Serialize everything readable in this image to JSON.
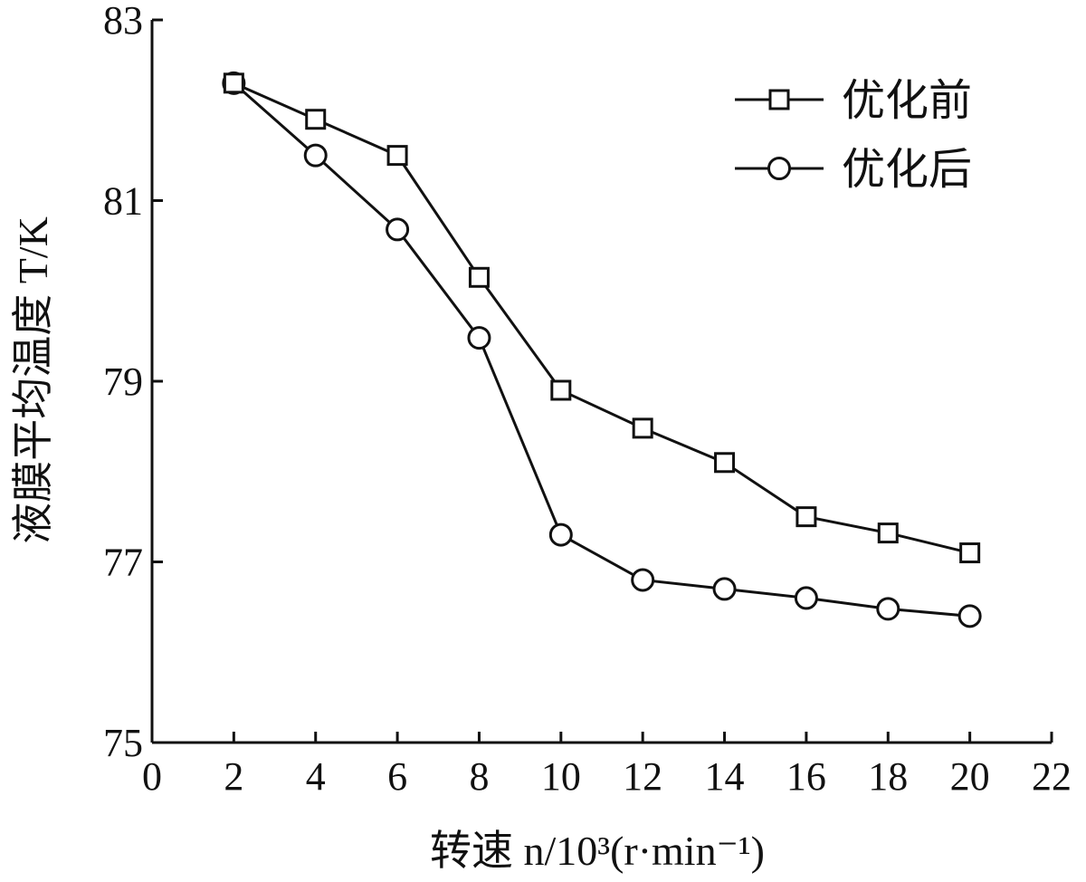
{
  "chart_data": {
    "type": "line",
    "xlabel": "转速 n/10³(r·min⁻¹)",
    "ylabel": "液膜平均温度 T/K",
    "xlim": [
      0,
      22
    ],
    "ylim": [
      75,
      83
    ],
    "x_ticks": [
      "0",
      "2",
      "4",
      "6",
      "8",
      "10",
      "12",
      "14",
      "16",
      "18",
      "20",
      "22"
    ],
    "y_ticks": [
      "75",
      "77",
      "79",
      "81",
      "83"
    ],
    "x": [
      2,
      4,
      6,
      8,
      10,
      12,
      14,
      16,
      18,
      20
    ],
    "grid": false,
    "legend_position": "top-right",
    "series": [
      {
        "name": "优化前",
        "marker": "square",
        "values": [
          82.3,
          81.9,
          81.5,
          80.15,
          78.9,
          78.48,
          78.1,
          77.5,
          77.32,
          77.1
        ]
      },
      {
        "name": "优化后",
        "marker": "circle",
        "values": [
          82.3,
          81.5,
          80.68,
          79.48,
          77.3,
          76.8,
          76.7,
          76.6,
          76.48,
          76.4
        ]
      }
    ],
    "colors": {
      "line": "#111111",
      "marker_fill": "#ffffff",
      "axis": "#111111"
    }
  }
}
